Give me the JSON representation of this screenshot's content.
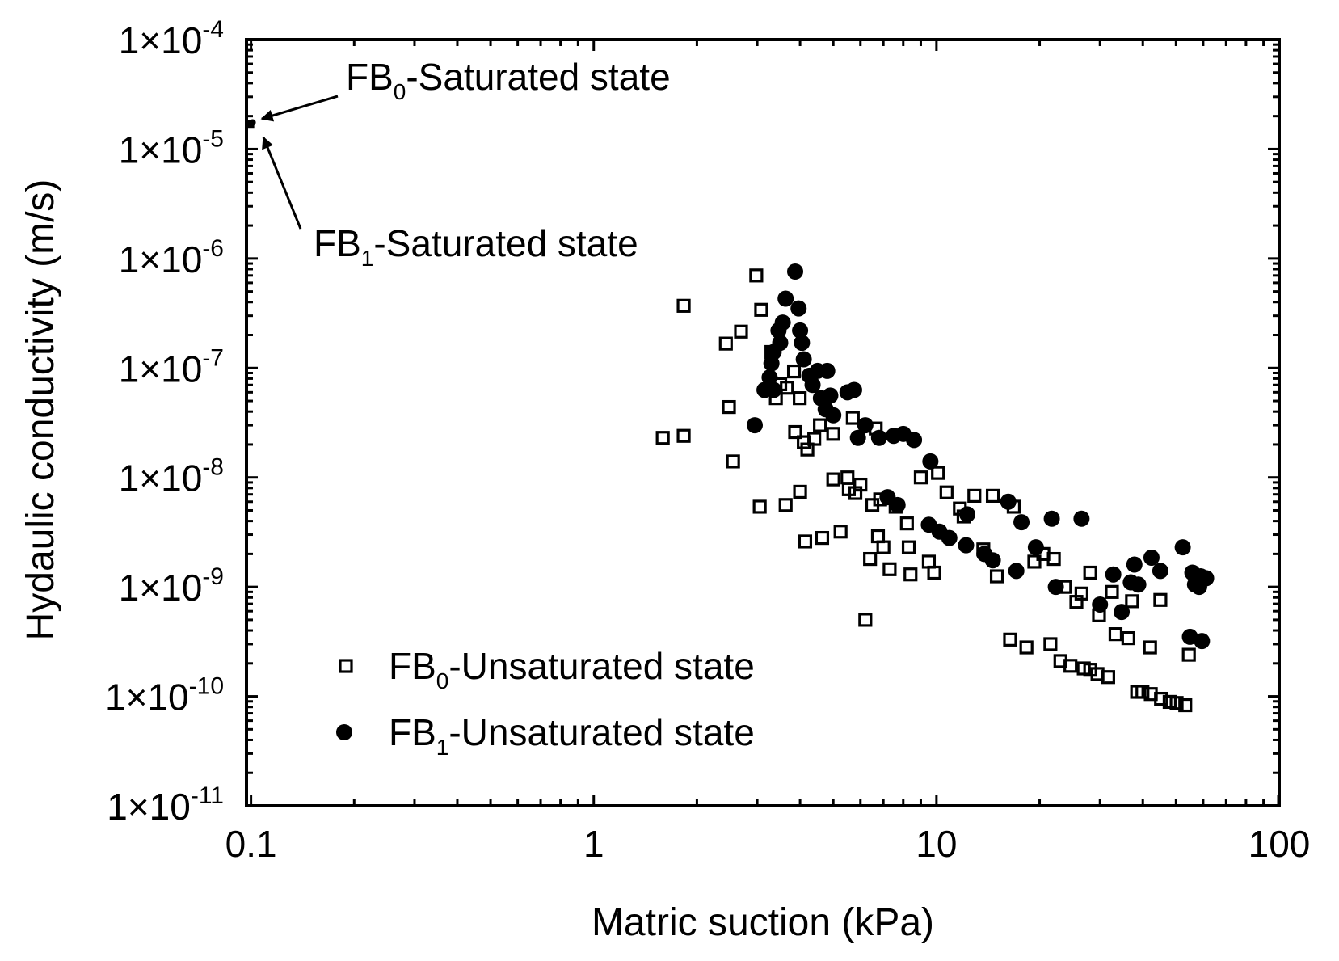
{
  "chart_data": {
    "type": "scatter",
    "title": "",
    "xlabel": "Matric suction (kPa)",
    "ylabel": "Hydaulic conductivity (m/s)",
    "xscale": "log",
    "yscale": "log",
    "xlim": [
      0.097,
      100
    ],
    "ylim": [
      1e-11,
      0.0001
    ],
    "x_ticks": [
      {
        "v": 0.1,
        "label": "0.1"
      },
      {
        "v": 1,
        "label": "1"
      },
      {
        "v": 10,
        "label": "10"
      },
      {
        "v": 100,
        "label": "100"
      }
    ],
    "y_ticks": [
      {
        "v": 0.0001,
        "base": "1×10",
        "exp": "-4"
      },
      {
        "v": 1e-05,
        "base": "1×10",
        "exp": "-5"
      },
      {
        "v": 1e-06,
        "base": "1×10",
        "exp": "-6"
      },
      {
        "v": 1e-07,
        "base": "1×10",
        "exp": "-7"
      },
      {
        "v": 1e-08,
        "base": "1×10",
        "exp": "-8"
      },
      {
        "v": 1e-09,
        "base": "1×10",
        "exp": "-9"
      },
      {
        "v": 1e-10,
        "base": "1×10",
        "exp": "-10"
      },
      {
        "v": 1e-11,
        "base": "1×10",
        "exp": "-11"
      }
    ],
    "grid": false,
    "legend_position": "bottom-left",
    "annotations": [
      {
        "prefix": "FB",
        "sub": "0",
        "suffix": "-Saturated state",
        "target": [
          0.1,
          1.7e-05
        ]
      },
      {
        "prefix": "FB",
        "sub": "1",
        "suffix": "-Saturated state",
        "target": [
          0.1,
          1.75e-05
        ]
      }
    ],
    "series": [
      {
        "name": "FB0-Unsaturated state",
        "legend_prefix": "FB",
        "legend_sub": "0",
        "legend_suffix": "-Unsaturated state",
        "marker": "open-square",
        "points": [
          [
            0.1,
            1.7e-05
          ],
          [
            1.59,
            2.3e-08
          ],
          [
            1.83,
            2.4e-08
          ],
          [
            1.83,
            3.7e-07
          ],
          [
            2.98,
            7e-07
          ],
          [
            3.08,
            3.4e-07
          ],
          [
            2.69,
            2.15e-07
          ],
          [
            2.43,
            1.67e-07
          ],
          [
            2.48,
            4.4e-08
          ],
          [
            2.55,
            1.4e-08
          ],
          [
            3.05,
            5.4e-09
          ],
          [
            3.63,
            5.6e-09
          ],
          [
            4.0,
            7.4e-09
          ],
          [
            4.14,
            2.6e-09
          ],
          [
            4.64,
            2.8e-09
          ],
          [
            5.25,
            3.2e-09
          ],
          [
            3.3,
            1.4e-07
          ],
          [
            3.5,
            7.1e-08
          ],
          [
            3.4,
            5.3e-08
          ],
          [
            3.99,
            5.3e-08
          ],
          [
            3.84,
            9.3e-08
          ],
          [
            3.66,
            6.6e-08
          ],
          [
            3.87,
            2.6e-08
          ],
          [
            4.1,
            2.1e-08
          ],
          [
            4.2,
            1.8e-08
          ],
          [
            4.4,
            2.25e-08
          ],
          [
            4.57,
            3e-08
          ],
          [
            5.0,
            2.5e-08
          ],
          [
            5.0,
            9.6e-09
          ],
          [
            5.5,
            1e-08
          ],
          [
            6.0,
            8.6e-09
          ],
          [
            5.55,
            7.8e-09
          ],
          [
            5.8,
            7.2e-09
          ],
          [
            5.7,
            3.5e-08
          ],
          [
            6.65,
            2.8e-08
          ],
          [
            6.2,
            5e-10
          ],
          [
            6.4,
            1.8e-09
          ],
          [
            6.5,
            5.6e-09
          ],
          [
            6.85,
            6.3e-09
          ],
          [
            6.75,
            2.9e-09
          ],
          [
            7.0,
            2.3e-09
          ],
          [
            7.3,
            1.45e-09
          ],
          [
            7.6,
            5.4e-09
          ],
          [
            8.2,
            3.8e-09
          ],
          [
            8.3,
            2.3e-09
          ],
          [
            8.4,
            1.3e-09
          ],
          [
            9.0,
            1e-08
          ],
          [
            9.5,
            1.7e-09
          ],
          [
            9.85,
            1.35e-09
          ],
          [
            10.1,
            1.1e-08
          ],
          [
            10.7,
            7.3e-09
          ],
          [
            11.7,
            5.2e-09
          ],
          [
            12.9,
            6.8e-09
          ],
          [
            12.0,
            4.4e-09
          ],
          [
            13.7,
            2.2e-09
          ],
          [
            14.6,
            6.8e-09
          ],
          [
            15.0,
            1.25e-09
          ],
          [
            16.4,
            3.3e-10
          ],
          [
            16.8,
            5.4e-09
          ],
          [
            18.3,
            2.8e-10
          ],
          [
            19.3,
            1.7e-09
          ],
          [
            20.5,
            2e-09
          ],
          [
            21.5,
            3e-10
          ],
          [
            22.0,
            1.8e-09
          ],
          [
            23.0,
            2.1e-10
          ],
          [
            23.7,
            1e-09
          ],
          [
            24.6,
            1.9e-10
          ],
          [
            25.6,
            7.3e-10
          ],
          [
            26.5,
            8.7e-10
          ],
          [
            26.9,
            1.8e-10
          ],
          [
            28.1,
            1.75e-10
          ],
          [
            28.1,
            1.35e-09
          ],
          [
            29.5,
            1.6e-10
          ],
          [
            29.8,
            5.5e-10
          ],
          [
            31.7,
            1.5e-10
          ],
          [
            32.5,
            9e-10
          ],
          [
            33.3,
            3.7e-10
          ],
          [
            36.3,
            3.4e-10
          ],
          [
            37.2,
            7.4e-10
          ],
          [
            38.5,
            1.1e-10
          ],
          [
            39.9,
            1.1e-10
          ],
          [
            42,
            2.8e-10
          ],
          [
            42.2,
            1.05e-10
          ],
          [
            45,
            7.6e-10
          ],
          [
            45.2,
            9.5e-11
          ],
          [
            47.9,
            8.9e-11
          ],
          [
            50.2,
            8.7e-11
          ],
          [
            54.5,
            2.4e-10
          ],
          [
            53.2,
            8.3e-11
          ]
        ]
      },
      {
        "name": "FB1-Unsaturated state",
        "legend_prefix": "FB",
        "legend_sub": "1",
        "legend_suffix": "-Unsaturated state",
        "marker": "filled-circle",
        "points": [
          [
            0.1,
            1.75e-05
          ],
          [
            3.87,
            7.6e-07
          ],
          [
            3.63,
            4.3e-07
          ],
          [
            3.96,
            3.5e-07
          ],
          [
            3.56,
            2.6e-07
          ],
          [
            3.46,
            2.2e-07
          ],
          [
            4.0,
            2.2e-07
          ],
          [
            3.5,
            1.7e-07
          ],
          [
            4.05,
            1.7e-07
          ],
          [
            3.35,
            1.4e-07
          ],
          [
            4.1,
            1.2e-07
          ],
          [
            3.3,
            1.1e-07
          ],
          [
            3.26,
            8.2e-08
          ],
          [
            3.35,
            6.3e-08
          ],
          [
            3.15,
            6.3e-08
          ],
          [
            4.26,
            8.5e-08
          ],
          [
            4.5,
            9.4e-08
          ],
          [
            4.8,
            9.4e-08
          ],
          [
            4.35,
            7e-08
          ],
          [
            4.6,
            5.3e-08
          ],
          [
            4.75,
            4.2e-08
          ],
          [
            5.0,
            3.7e-08
          ],
          [
            4.9,
            5.6e-08
          ],
          [
            5.5,
            6e-08
          ],
          [
            5.75,
            6.3e-08
          ],
          [
            2.95,
            3e-08
          ],
          [
            6.2,
            3e-08
          ],
          [
            5.9,
            2.3e-08
          ],
          [
            6.8,
            2.3e-08
          ],
          [
            7.5,
            2.4e-08
          ],
          [
            8.0,
            2.5e-08
          ],
          [
            8.6,
            2.2e-08
          ],
          [
            9.6,
            1.4e-08
          ],
          [
            7.2,
            6.6e-09
          ],
          [
            7.7,
            5.6e-09
          ],
          [
            9.5,
            3.7e-09
          ],
          [
            10.2,
            3.2e-09
          ],
          [
            10.9,
            2.8e-09
          ],
          [
            12.2,
            2.4e-09
          ],
          [
            12.3,
            4.6e-09
          ],
          [
            13.8,
            2e-09
          ],
          [
            14.6,
            1.75e-09
          ],
          [
            16.2,
            6e-09
          ],
          [
            17.7,
            3.9e-09
          ],
          [
            17.1,
            1.4e-09
          ],
          [
            19.5,
            2.3e-09
          ],
          [
            21.7,
            4.2e-09
          ],
          [
            22.3,
            1e-09
          ],
          [
            26.5,
            4.2e-09
          ],
          [
            30,
            6.9e-10
          ],
          [
            32.8,
            1.3e-09
          ],
          [
            34.7,
            5.9e-10
          ],
          [
            36.9,
            1.1e-09
          ],
          [
            38.8,
            1.05e-09
          ],
          [
            37.8,
            1.6e-09
          ],
          [
            42.4,
            1.85e-09
          ],
          [
            45,
            1.4e-09
          ],
          [
            52.3,
            2.3e-09
          ],
          [
            55.8,
            1.35e-09
          ],
          [
            54.9,
            3.5e-10
          ],
          [
            59.5,
            3.2e-10
          ],
          [
            56.8,
            1.05e-09
          ],
          [
            58.4,
            1e-09
          ],
          [
            61.2,
            1.2e-09
          ],
          [
            59,
            1.25e-09
          ]
        ]
      }
    ]
  }
}
